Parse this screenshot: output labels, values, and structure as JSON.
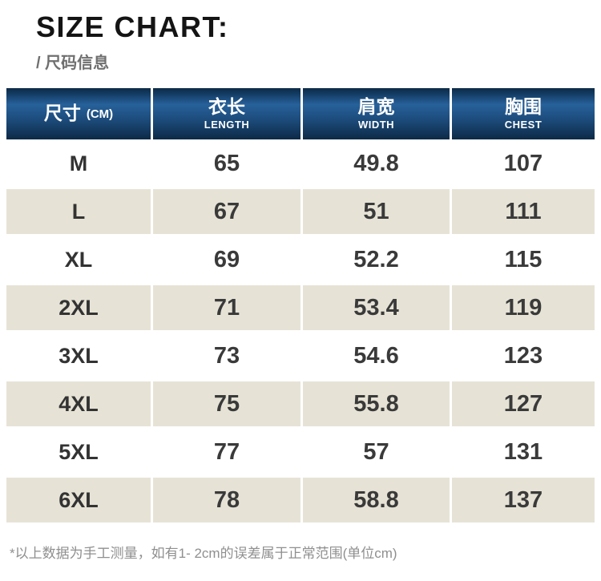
{
  "header": {
    "title": "SIZE CHART:",
    "subtitle": "/ 尺码信息"
  },
  "table": {
    "size_header": {
      "label": "尺寸",
      "unit": "(CM)"
    },
    "columns": [
      {
        "cn": "衣长",
        "en": "LENGTH"
      },
      {
        "cn": "肩宽",
        "en": "WIDTH"
      },
      {
        "cn": "胸围",
        "en": "CHEST"
      }
    ],
    "rows": [
      {
        "size": "M",
        "length": "65",
        "width": "49.8",
        "chest": "107"
      },
      {
        "size": "L",
        "length": "67",
        "width": "51",
        "chest": "111"
      },
      {
        "size": "XL",
        "length": "69",
        "width": "52.2",
        "chest": "115"
      },
      {
        "size": "2XL",
        "length": "71",
        "width": "53.4",
        "chest": "119"
      },
      {
        "size": "3XL",
        "length": "73",
        "width": "54.6",
        "chest": "123"
      },
      {
        "size": "4XL",
        "length": "75",
        "width": "55.8",
        "chest": "127"
      },
      {
        "size": "5XL",
        "length": "77",
        "width": "57",
        "chest": "131"
      },
      {
        "size": "6XL",
        "length": "78",
        "width": "58.8",
        "chest": "137"
      }
    ]
  },
  "footnote": "*以上数据为手工测量，如有1- 2cm的误差属于正常范围(单位cm)",
  "colors": {
    "header_blue_light": "#27619a",
    "header_blue_dark": "#0d2a46",
    "row_beige": "#e6e3d6",
    "row_white": "#ffffff",
    "title_text": "#141414",
    "body_text": "#3a3a3a",
    "muted_text": "#8f8f8f"
  },
  "chart_data": {
    "type": "table",
    "title": "SIZE CHART:",
    "subtitle": "/ 尺码信息",
    "unit": "cm",
    "columns": [
      "尺寸 (CM)",
      "衣长 LENGTH",
      "肩宽 WIDTH",
      "胸围 CHEST"
    ],
    "rows": [
      [
        "M",
        65,
        49.8,
        107
      ],
      [
        "L",
        67,
        51,
        111
      ],
      [
        "XL",
        69,
        52.2,
        115
      ],
      [
        "2XL",
        71,
        53.4,
        119
      ],
      [
        "3XL",
        73,
        54.6,
        123
      ],
      [
        "4XL",
        75,
        55.8,
        127
      ],
      [
        "5XL",
        77,
        57,
        131
      ],
      [
        "6XL",
        78,
        58.8,
        137
      ]
    ],
    "note": "*以上数据为手工测量，如有1- 2cm的误差属于正常范围(单位cm)"
  }
}
